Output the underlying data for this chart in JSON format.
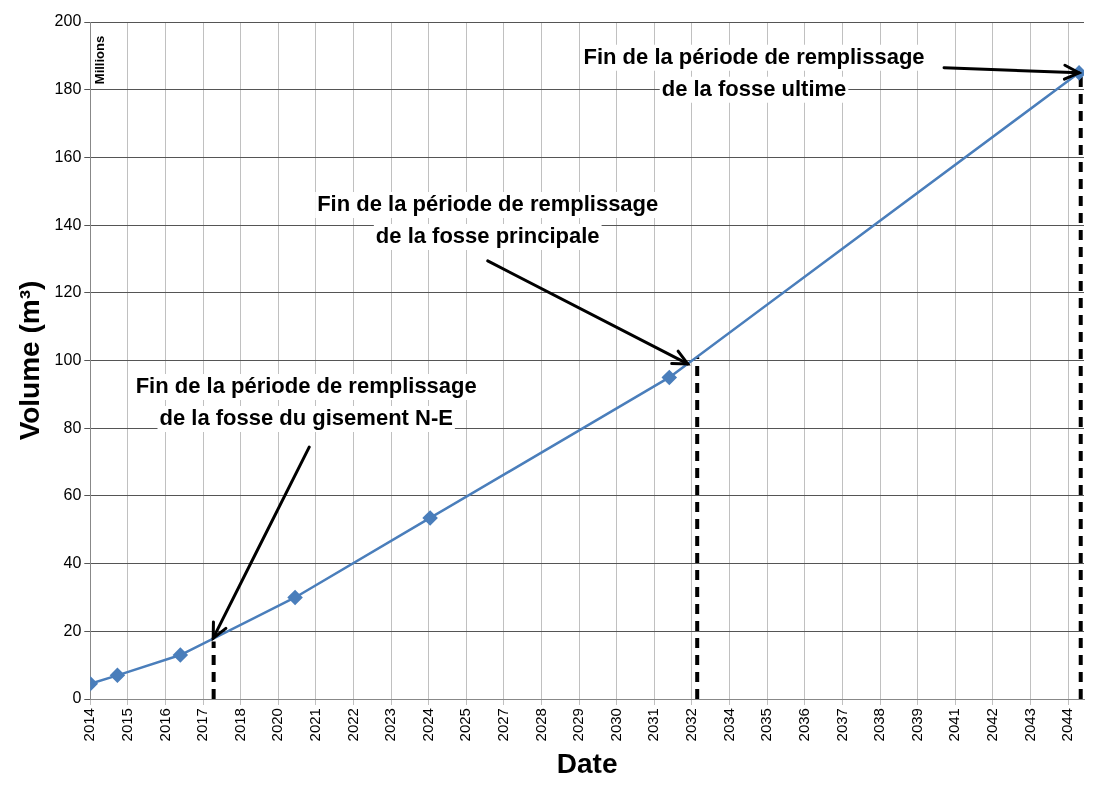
{
  "chart_data": {
    "type": "line",
    "xlabel": "Date",
    "ylabel": "Volume (m³)",
    "x": [
      "2014-04-20",
      "2015-02-20",
      "2017-01-30",
      "2020-08-17",
      "2024-10-19",
      "2032-03-10",
      "2044-11-06"
    ],
    "series": [
      {
        "color": "#4a7ebb",
        "values": [
          4.5,
          7,
          13,
          30,
          53.5,
          95,
          185
        ]
      },
      {
        "type": "line",
        "color": "#000000",
        "x": [
          "2018-02-10",
          "2018-02-10"
        ],
        "values": [
          0,
          17
        ],
        "marker": "none",
        "line_style": "dashed"
      },
      {
        "type": "line",
        "color": "#000000",
        "x": [
          "2033-01-19",
          "2033-01-19"
        ],
        "values": [
          0,
          101
        ],
        "marker": "none",
        "line_style": "dashed"
      },
      {
        "type": "line",
        "color": "#000000",
        "x": [
          "2044-11-25",
          "2044-11-25"
        ],
        "values": [
          0,
          185
        ],
        "marker": "none",
        "line_style": "dashed"
      }
    ],
    "marker": "diamond",
    "line_style": "solid",
    "grid": true,
    "legend": false,
    "xlim": [
      "2014-04-20",
      "2045-01-01"
    ],
    "xticks": [
      {
        "value": "2014-04-20",
        "label": "2014"
      },
      {
        "value": "2015-06-18",
        "label": "2015"
      },
      {
        "value": "2016-08-15",
        "label": "2016"
      },
      {
        "value": "2017-10-14",
        "label": "2017"
      },
      {
        "value": "2018-12-12",
        "label": "2018"
      },
      {
        "value": "2020-02-09",
        "label": "2020"
      },
      {
        "value": "2021-04-09",
        "label": "2021"
      },
      {
        "value": "2022-06-07",
        "label": "2022"
      },
      {
        "value": "2023-08-05",
        "label": "2023"
      },
      {
        "value": "2024-10-03",
        "label": "2024"
      },
      {
        "value": "2025-12-01",
        "label": "2025"
      },
      {
        "value": "2027-01-30",
        "label": "2027"
      },
      {
        "value": "2028-03-29",
        "label": "2028"
      },
      {
        "value": "2029-05-28",
        "label": "2029"
      },
      {
        "value": "2030-07-26",
        "label": "2030"
      },
      {
        "value": "2031-09-23",
        "label": "2031"
      },
      {
        "value": "2032-11-21",
        "label": "2032"
      },
      {
        "value": "2034-01-20",
        "label": "2034"
      },
      {
        "value": "2035-03-20",
        "label": "2035"
      },
      {
        "value": "2036-05-17",
        "label": "2036"
      },
      {
        "value": "2037-07-16",
        "label": "2037"
      },
      {
        "value": "2038-09-13",
        "label": "2038"
      },
      {
        "value": "2039-11-11",
        "label": "2039"
      },
      {
        "value": "2041-01-10",
        "label": "2041"
      },
      {
        "value": "2042-03-09",
        "label": "2042"
      },
      {
        "value": "2043-05-08",
        "label": "2043"
      },
      {
        "value": "2044-07-05",
        "label": "2044"
      }
    ],
    "ylim": [
      0,
      200
    ],
    "yticks": [
      0,
      20,
      40,
      60,
      80,
      100,
      120,
      140,
      160,
      180,
      200
    ],
    "annotations": [
      {
        "text": "Fin de la période de remplissage\nde la fosse du gisement N-E",
        "x": "2018-02-05",
        "y": 18
      },
      {
        "text": "Fin de la période de remplissage\nde la fosse principale",
        "x": "2032-10-04",
        "y": 99
      },
      {
        "text": "Fin de la période de remplissage\nde la fosse ultime",
        "x": "2044-11-06",
        "y": 185
      },
      "Millions"
    ]
  }
}
